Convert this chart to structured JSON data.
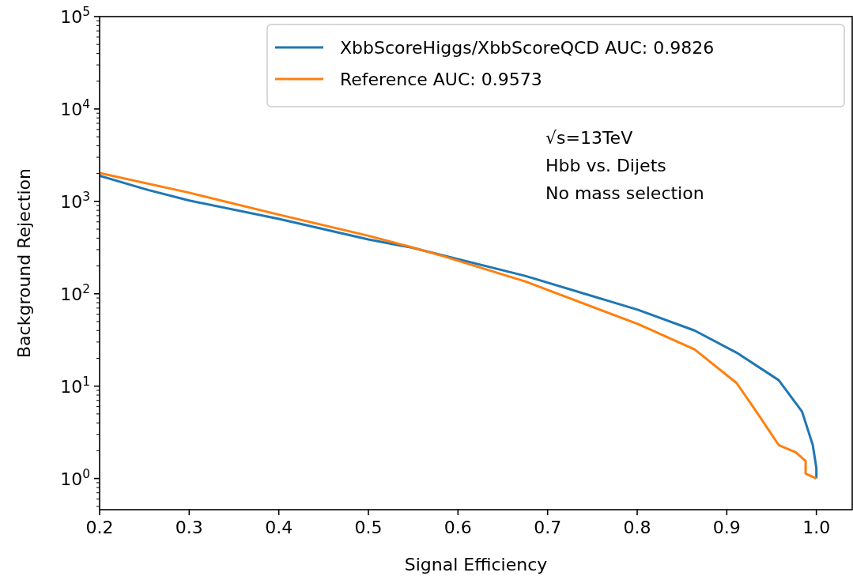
{
  "chart_data": {
    "type": "line",
    "xlabel": "Signal Efficiency",
    "ylabel": "Background Rejection",
    "log": "y",
    "xlim": [
      0.2,
      1.04
    ],
    "xticks": [
      {
        "value": 0.2,
        "label": "0.2"
      },
      {
        "value": 0.3,
        "label": "0.3"
      },
      {
        "value": 0.4,
        "label": "0.4"
      },
      {
        "value": 0.5,
        "label": "0.5"
      },
      {
        "value": 0.6,
        "label": "0.6"
      },
      {
        "value": 0.7,
        "label": "0.7"
      },
      {
        "value": 0.8,
        "label": "0.8"
      },
      {
        "value": 0.9,
        "label": "0.9"
      },
      {
        "value": 1.0,
        "label": "1.0"
      }
    ],
    "ylim": [
      0.46,
      100000
    ],
    "yticks": [
      {
        "value": 1,
        "label": "10$^{0}$"
      },
      {
        "value": 10,
        "label": "10$^{1}$"
      },
      {
        "value": 100,
        "label": "10$^{2}$"
      },
      {
        "value": 1000,
        "label": "10$^{3}$"
      },
      {
        "value": 10000,
        "label": "10$^{4}$"
      },
      {
        "value": 100000,
        "label": "10$^{5}$"
      }
    ],
    "grid": false,
    "legend": "top right",
    "annotations": [
      "√s=13TeV",
      "Hbb vs. Dijets",
      "No mass selection"
    ],
    "series": [
      {
        "name": "XbbScoreHiggs/XbbScoreQCD AUC: 0.9826",
        "color": "#1f77b4",
        "x": [
          0.2,
          0.254,
          0.3,
          0.4,
          0.5,
          0.548,
          0.675,
          0.801,
          0.864,
          0.911,
          0.958,
          0.984,
          0.996,
          1.0,
          1.0
        ],
        "values": [
          1890,
          1330,
          1020,
          646,
          387,
          316,
          156,
          67,
          40,
          23,
          11.6,
          5.3,
          2.3,
          1.3,
          1.0
        ]
      },
      {
        "name": "Reference AUC: 0.9573",
        "color": "#ff7f0e",
        "x": [
          0.2,
          0.3,
          0.4,
          0.5,
          0.548,
          0.584,
          0.675,
          0.801,
          0.864,
          0.911,
          0.933,
          0.958,
          0.977,
          0.988,
          0.988,
          1.0
        ],
        "values": [
          2030,
          1240,
          718,
          424,
          320,
          254,
          136,
          47,
          25,
          10.8,
          5.3,
          2.3,
          1.92,
          1.55,
          1.13,
          1.0
        ]
      }
    ]
  }
}
